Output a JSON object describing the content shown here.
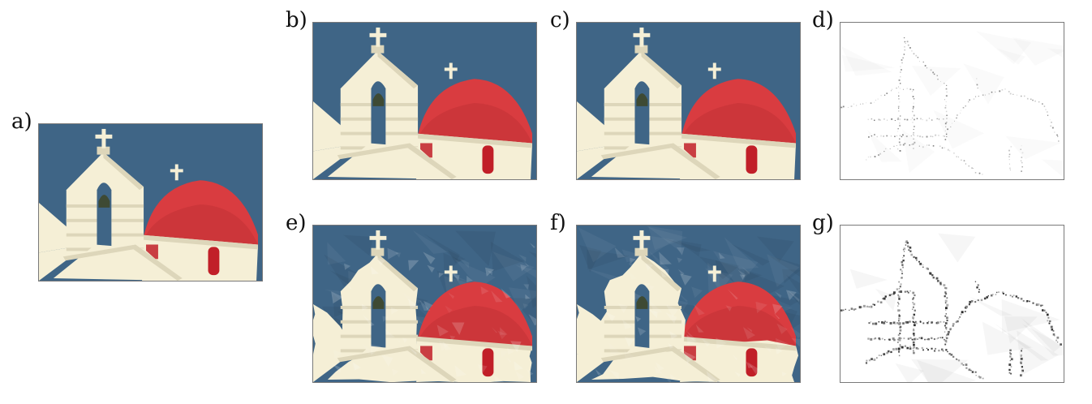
{
  "figure": {
    "panels": [
      {
        "id": "a",
        "label": "a)",
        "kind": "photo",
        "style": "original"
      },
      {
        "id": "b",
        "label": "b)",
        "kind": "photo",
        "style": "smooth"
      },
      {
        "id": "c",
        "label": "c)",
        "kind": "photo",
        "style": "smooth"
      },
      {
        "id": "d",
        "label": "d)",
        "kind": "error-map",
        "style": "light"
      },
      {
        "id": "e",
        "label": "e)",
        "kind": "photo",
        "style": "faceted"
      },
      {
        "id": "f",
        "label": "f)",
        "kind": "photo",
        "style": "faceted-strong"
      },
      {
        "id": "g",
        "label": "g)",
        "kind": "error-map",
        "style": "dark"
      }
    ],
    "colors": {
      "sky": "#3f6586",
      "wall": "#f5efd6",
      "wall_shadow": "#ddd6ba",
      "dome": "#d93c40",
      "dome_dark": "#b52a30",
      "window": "#c11f28",
      "bell": "#3e4a34",
      "frame": "#7a7a7a"
    }
  }
}
